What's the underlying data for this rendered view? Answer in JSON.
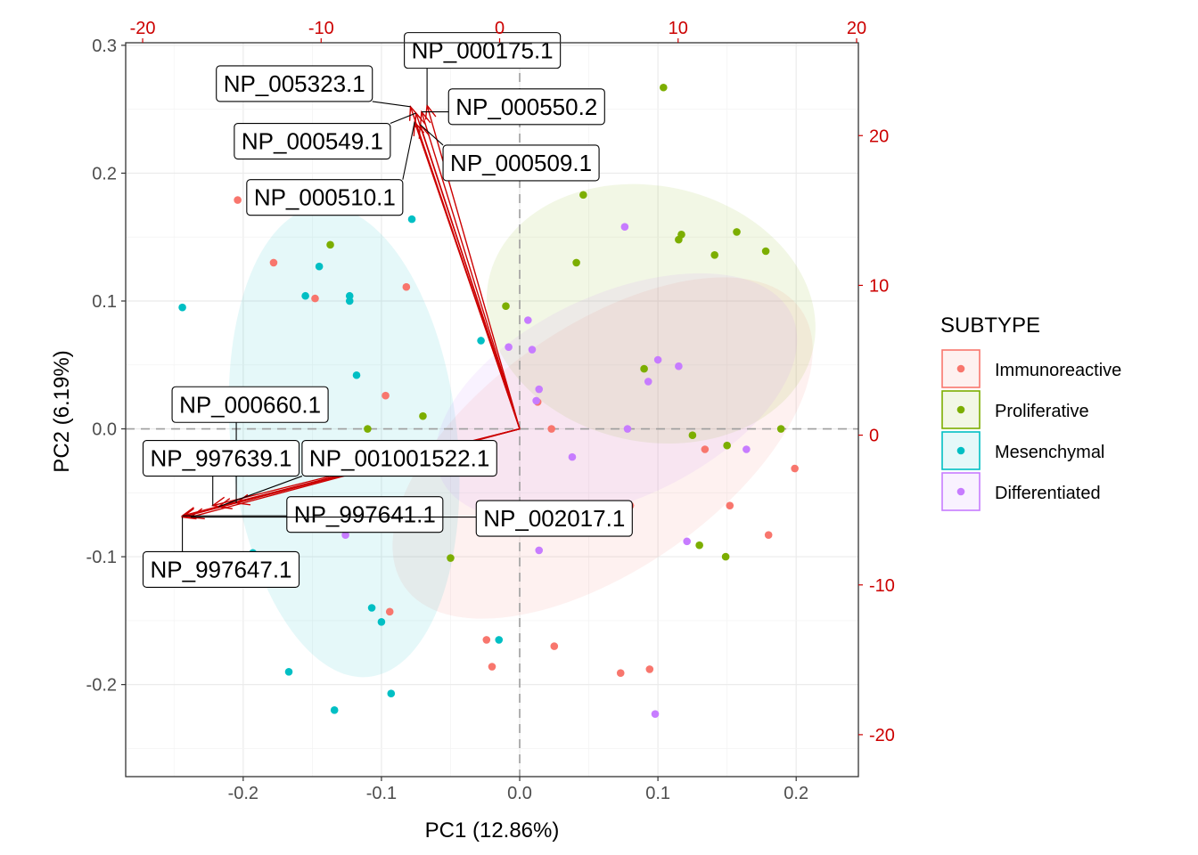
{
  "chart_data": {
    "type": "scatter",
    "subtype": "pca-biplot",
    "title": "",
    "xlabel": "PC1 (12.86%)",
    "ylabel": "PC2 (6.19%)",
    "xlim": [
      -0.285,
      0.245
    ],
    "ylim": [
      -0.272,
      0.302
    ],
    "secondary_xlim": [
      -20.95,
      20.1
    ],
    "secondary_ylim": [
      -22.8,
      26.2
    ],
    "x_ticks": [
      "-0.2",
      "-0.1",
      "0.0",
      "0.1",
      "0.2"
    ],
    "x_tick_values": [
      -0.2,
      -0.1,
      0.0,
      0.1,
      0.2
    ],
    "y_ticks": [
      "-0.2",
      "-0.1",
      "0.0",
      "0.1",
      "0.2",
      "0.3"
    ],
    "y_tick_values": [
      -0.2,
      -0.1,
      0.0,
      0.1,
      0.2,
      0.3
    ],
    "top_ticks": [
      "-20",
      "-10",
      "0",
      "10",
      "20"
    ],
    "top_tick_values": [
      -20,
      -10,
      0,
      10,
      20
    ],
    "right_ticks": [
      "-20",
      "-10",
      "0",
      "10",
      "20"
    ],
    "right_tick_values": [
      -20,
      -10,
      0,
      10,
      20
    ],
    "grid": true,
    "legend": {
      "title": "SUBTYPE",
      "position": "right",
      "items": [
        "Immunoreactive",
        "Proliferative",
        "Mesenchymal",
        "Differentiated"
      ]
    },
    "colors": {
      "Immunoreactive": "#F8766D",
      "Proliferative": "#7CAE00",
      "Mesenchymal": "#00BFC4",
      "Differentiated": "#C77CFF",
      "loading_arrow": "#cc0000",
      "secondary_axis": "#cc0000"
    },
    "series": [
      {
        "name": "Immunoreactive",
        "points": [
          [
            -0.178,
            0.13
          ],
          [
            -0.148,
            0.102
          ],
          [
            -0.082,
            0.111
          ],
          [
            -0.097,
            0.026
          ],
          [
            0.023,
            0.0
          ],
          [
            0.013,
            0.021
          ],
          [
            0.134,
            -0.016
          ],
          [
            0.152,
            -0.06
          ],
          [
            0.199,
            -0.031
          ],
          [
            0.18,
            -0.083
          ],
          [
            0.08,
            -0.06
          ],
          [
            0.025,
            -0.17
          ],
          [
            -0.024,
            -0.165
          ],
          [
            -0.02,
            -0.186
          ],
          [
            -0.094,
            -0.143
          ],
          [
            0.073,
            -0.191
          ],
          [
            0.094,
            -0.188
          ],
          [
            -0.204,
            0.179
          ]
        ]
      },
      {
        "name": "Proliferative",
        "points": [
          [
            0.104,
            0.267
          ],
          [
            0.046,
            0.183
          ],
          [
            0.115,
            0.148
          ],
          [
            0.117,
            0.152
          ],
          [
            0.141,
            0.136
          ],
          [
            0.157,
            0.154
          ],
          [
            0.178,
            0.139
          ],
          [
            0.041,
            0.13
          ],
          [
            -0.01,
            0.096
          ],
          [
            0.09,
            0.047
          ],
          [
            -0.137,
            0.144
          ],
          [
            -0.11,
            0.0
          ],
          [
            -0.07,
            0.01
          ],
          [
            0.125,
            -0.005
          ],
          [
            0.15,
            -0.013
          ],
          [
            0.189,
            0.0
          ],
          [
            0.13,
            -0.091
          ],
          [
            0.149,
            -0.1
          ],
          [
            -0.05,
            -0.101
          ]
        ]
      },
      {
        "name": "Mesenchymal",
        "points": [
          [
            -0.244,
            0.095
          ],
          [
            -0.145,
            0.127
          ],
          [
            -0.155,
            0.104
          ],
          [
            -0.123,
            0.1
          ],
          [
            -0.123,
            0.104
          ],
          [
            -0.118,
            0.042
          ],
          [
            -0.078,
            0.164
          ],
          [
            -0.028,
            0.069
          ],
          [
            -0.078,
            -0.027
          ],
          [
            -0.193,
            -0.097
          ],
          [
            -0.107,
            -0.14
          ],
          [
            -0.1,
            -0.151
          ],
          [
            -0.167,
            -0.19
          ],
          [
            -0.134,
            -0.22
          ],
          [
            -0.093,
            -0.207
          ],
          [
            -0.015,
            -0.165
          ]
        ]
      },
      {
        "name": "Differentiated",
        "points": [
          [
            0.076,
            0.158
          ],
          [
            0.006,
            0.085
          ],
          [
            -0.008,
            0.064
          ],
          [
            0.009,
            0.062
          ],
          [
            0.1,
            0.054
          ],
          [
            0.115,
            0.049
          ],
          [
            0.093,
            0.037
          ],
          [
            0.014,
            0.031
          ],
          [
            0.012,
            0.022
          ],
          [
            0.078,
            0.0
          ],
          [
            0.164,
            -0.016
          ],
          [
            0.038,
            -0.022
          ],
          [
            0.121,
            -0.088
          ],
          [
            0.014,
            -0.095
          ],
          [
            -0.126,
            -0.083
          ],
          [
            0.098,
            -0.223
          ]
        ]
      }
    ],
    "ellipses": [
      {
        "series": "Immunoreactive",
        "cx": 0.06,
        "cy": -0.015,
        "rx": 0.175,
        "ry": 0.095,
        "angle_deg": 35
      },
      {
        "series": "Proliferative",
        "cx": 0.095,
        "cy": 0.09,
        "rx": 0.12,
        "ry": 0.1,
        "angle_deg": -12
      },
      {
        "series": "Mesenchymal",
        "cx": -0.127,
        "cy": -0.01,
        "rx": 0.082,
        "ry": 0.185,
        "angle_deg": 6
      },
      {
        "series": "Differentiated",
        "cx": 0.07,
        "cy": 0.025,
        "rx": 0.14,
        "ry": 0.08,
        "angle_deg": 25
      }
    ],
    "loadings": [
      {
        "label": "NP_000175.1",
        "x": -0.067,
        "y": 0.253,
        "label_x": -0.027,
        "label_y": 0.296
      },
      {
        "label": "NP_005323.1",
        "x": -0.079,
        "y": 0.252,
        "label_x": -0.163,
        "label_y": 0.27
      },
      {
        "label": "NP_000550.2",
        "x": -0.071,
        "y": 0.248,
        "label_x": 0.005,
        "label_y": 0.252
      },
      {
        "label": "NP_000549.1",
        "x": -0.075,
        "y": 0.247,
        "label_x": -0.15,
        "label_y": 0.225
      },
      {
        "label": "NP_000509.1",
        "x": -0.072,
        "y": 0.238,
        "label_x": 0.001,
        "label_y": 0.208
      },
      {
        "label": "NP_000510.1",
        "x": -0.076,
        "y": 0.24,
        "label_x": -0.141,
        "label_y": 0.181
      },
      {
        "label": "NP_000660.1",
        "x": -0.205,
        "y": -0.058,
        "label_x": -0.195,
        "label_y": 0.019
      },
      {
        "label": "NP_997639.1",
        "x": -0.222,
        "y": -0.06,
        "label_x": -0.216,
        "label_y": -0.023
      },
      {
        "label": "NP_001001522.1",
        "x": -0.218,
        "y": -0.061,
        "label_x": -0.087,
        "label_y": -0.023
      },
      {
        "label": "NP_997641.1",
        "x": -0.244,
        "y": -0.068,
        "label_x": -0.112,
        "label_y": -0.067
      },
      {
        "label": "NP_002017.1",
        "x": -0.238,
        "y": -0.069,
        "label_x": 0.025,
        "label_y": -0.07
      },
      {
        "label": "NP_997647.1",
        "x": -0.244,
        "y": -0.069,
        "label_x": -0.216,
        "label_y": -0.11
      }
    ]
  }
}
